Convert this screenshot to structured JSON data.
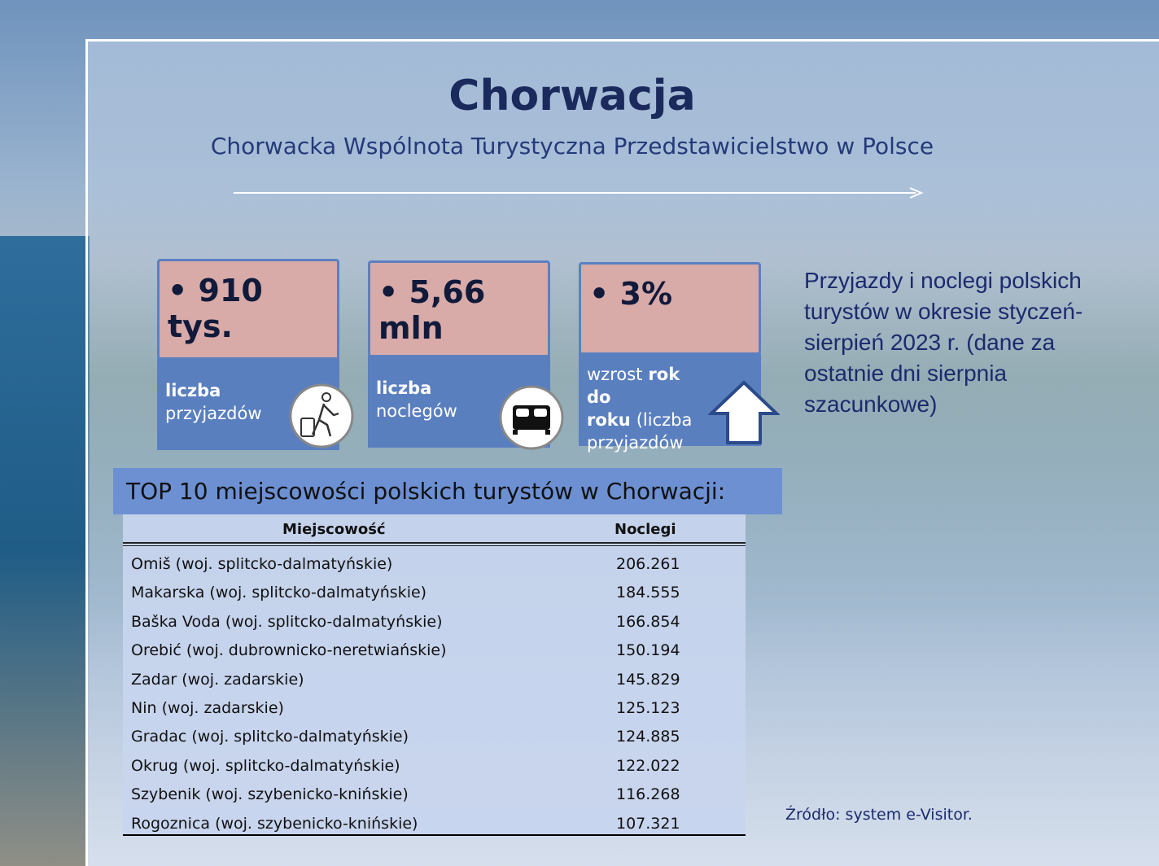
{
  "header": {
    "title": "Chorwacja",
    "subtitle": "Chorwacka Wspólnota Turystyczna Przedstawicielstwo w Polsce"
  },
  "cards": [
    {
      "value": "• 910 tys.",
      "label": [
        {
          "text": "liczba",
          "bold": true
        },
        {
          "text": "przyjazdów",
          "bold": false
        }
      ]
    },
    {
      "value": "• 5,66 mln",
      "label": [
        {
          "text": "liczba",
          "bold": true
        },
        {
          "text": "noclegów",
          "bold": false
        }
      ]
    },
    {
      "value": "• 3%",
      "label": [
        {
          "text": "wzrost",
          "bold": false
        },
        {
          "text": "rok do roku",
          "bold": true
        },
        {
          "text": "(liczba przyjazdów",
          "bold": false
        }
      ]
    }
  ],
  "description": "Przyjazdy i noclegi polskich turystów w okresie styczeń-sierpień 2023 r. (dane za ostatnie dni sierpnia szacunkowe)",
  "table": {
    "title": "TOP 10 miejscowości polskich turystów w Chorwacji:",
    "headers": [
      "Miejscowość",
      "Noclegi"
    ],
    "rows": [
      [
        "Omiš (woj. splitcko-dalmatyńskie)",
        "206.261"
      ],
      [
        "Makarska (woj. splitcko-dalmatyńskie)",
        "184.555"
      ],
      [
        "Baška Voda (woj. splitcko-dalmatyńskie)",
        "166.854"
      ],
      [
        "Orebić (woj. dubrownicko-neretwiańskie)",
        "150.194"
      ],
      [
        "Zadar (woj. zadarskie)",
        "145.829"
      ],
      [
        "Nin (woj. zadarskie)",
        "125.123"
      ],
      [
        "Gradac (woj. splitcko-dalmatyńskie)",
        "124.885"
      ],
      [
        "Okrug (woj. splitcko-dalmatyńskie)",
        "122.022"
      ],
      [
        "Szybenik (woj. szybenicko-knińskie)",
        "116.268"
      ],
      [
        "Rogoznica (woj. szybenicko-knińskie)",
        "107.321"
      ]
    ]
  },
  "source": "Źródło: system e-Visitor."
}
